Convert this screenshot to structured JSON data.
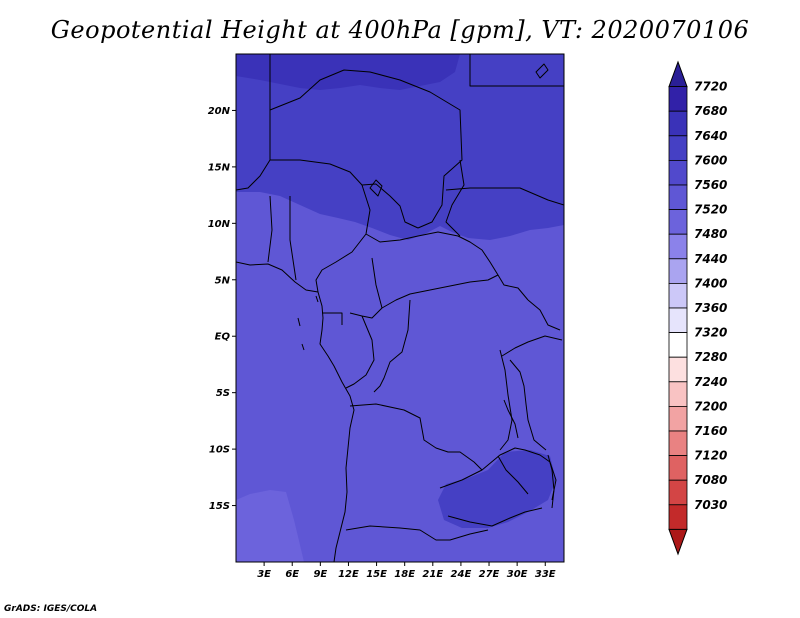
{
  "title": "Geopotential Height at 400hPa [gpm], VT: 2020070106",
  "credit": "GrADS: IGES/COLA",
  "map": {
    "lon_range": [
      0,
      35
    ],
    "lat_range": [
      -20,
      25
    ],
    "lat_labels": [
      {
        "lat": 20,
        "label": "20N"
      },
      {
        "lat": 15,
        "label": "15N"
      },
      {
        "lat": 10,
        "label": "10N"
      },
      {
        "lat": 5,
        "label": "5N"
      },
      {
        "lat": 0,
        "label": "EQ"
      },
      {
        "lat": -5,
        "label": "5S"
      },
      {
        "lat": -10,
        "label": "10S"
      },
      {
        "lat": -15,
        "label": "15S"
      }
    ],
    "lon_labels": [
      {
        "lon": 3,
        "label": "3E"
      },
      {
        "lon": 6,
        "label": "6E"
      },
      {
        "lon": 9,
        "label": "9E"
      },
      {
        "lon": 12,
        "label": "12E"
      },
      {
        "lon": 15,
        "label": "15E"
      },
      {
        "lon": 18,
        "label": "18E"
      },
      {
        "lon": 21,
        "label": "21E"
      },
      {
        "lon": 24,
        "label": "24E"
      },
      {
        "lon": 27,
        "label": "27E"
      },
      {
        "lon": 30,
        "label": "30E"
      },
      {
        "lon": 33,
        "label": "33E"
      }
    ]
  },
  "colorbar": {
    "levels": [
      "7720",
      "7680",
      "7640",
      "7600",
      "7560",
      "7520",
      "7480",
      "7440",
      "7400",
      "7360",
      "7320",
      "7280",
      "7240",
      "7200",
      "7160",
      "7120",
      "7080",
      "7030"
    ],
    "colors": [
      "#2a1f97",
      "#3121a8",
      "#3a32b8",
      "#4540c4",
      "#5149cc",
      "#5f57d5",
      "#6c63dc",
      "#8b82ea",
      "#aaa4f0",
      "#ccc8f8",
      "#e6e4fc",
      "#ffffff",
      "#fde0e0",
      "#f9c3c3",
      "#f2a3a3",
      "#e98282",
      "#df6262",
      "#d34545",
      "#c32a2a",
      "#ac1818"
    ]
  },
  "fields": {
    "north_band_color": "#4540c4",
    "north_cap_color": "#3a32b8",
    "mid_color": "#5f57d5",
    "south_east_patch_color": "#4540c4",
    "south_west_patch_color": "#6c63dc"
  }
}
